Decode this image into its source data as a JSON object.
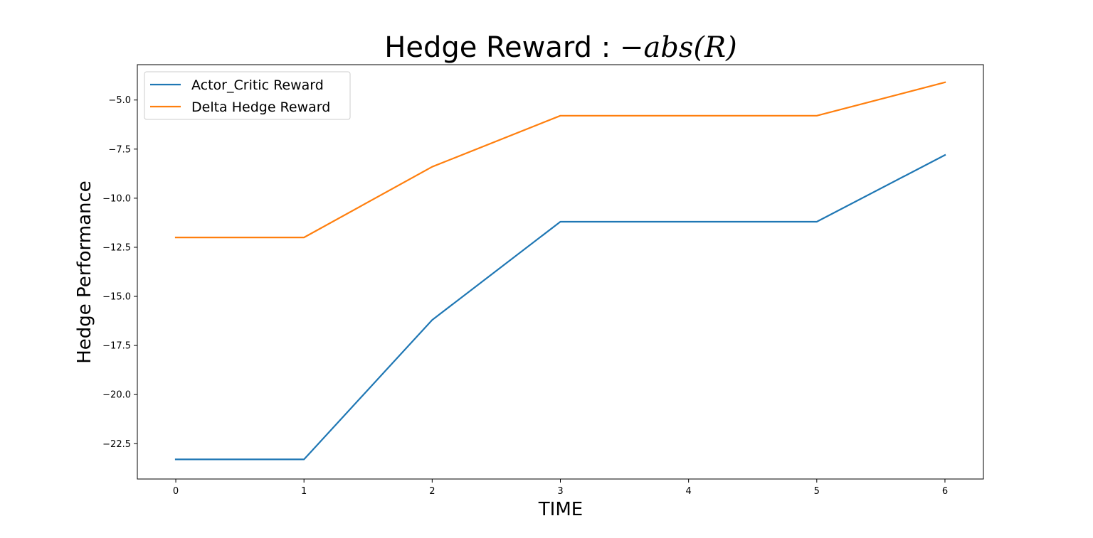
{
  "chart_data": {
    "type": "line",
    "title_text": "Hedge Reward : ",
    "title_math": "−abs(R)",
    "xlabel": "TIME",
    "ylabel": "Hedge Performance",
    "x": [
      0,
      1,
      2,
      3,
      4,
      5,
      6
    ],
    "xlim": [
      -0.3,
      6.3
    ],
    "ylim": [
      -24.3,
      -3.2
    ],
    "xticks": [
      0,
      1,
      2,
      3,
      4,
      5,
      6
    ],
    "yticks": [
      -5.0,
      -7.5,
      -10.0,
      -12.5,
      -15.0,
      -17.5,
      -20.0,
      -22.5
    ],
    "ytick_labels": [
      "−5.0",
      "−7.5",
      "−10.0",
      "−12.5",
      "−15.0",
      "−17.5",
      "−20.0",
      "−22.5"
    ],
    "grid": false,
    "legend_position": "upper-left",
    "series": [
      {
        "name": "Actor_Critic Reward",
        "color": "#1f77b4",
        "values": [
          -23.3,
          -23.3,
          -16.2,
          -11.2,
          -11.2,
          -11.2,
          -7.8
        ]
      },
      {
        "name": "Delta Hedge Reward",
        "color": "#ff7f0e",
        "values": [
          -12.0,
          -12.0,
          -8.4,
          -5.8,
          -5.8,
          -5.8,
          -4.1
        ]
      }
    ]
  }
}
